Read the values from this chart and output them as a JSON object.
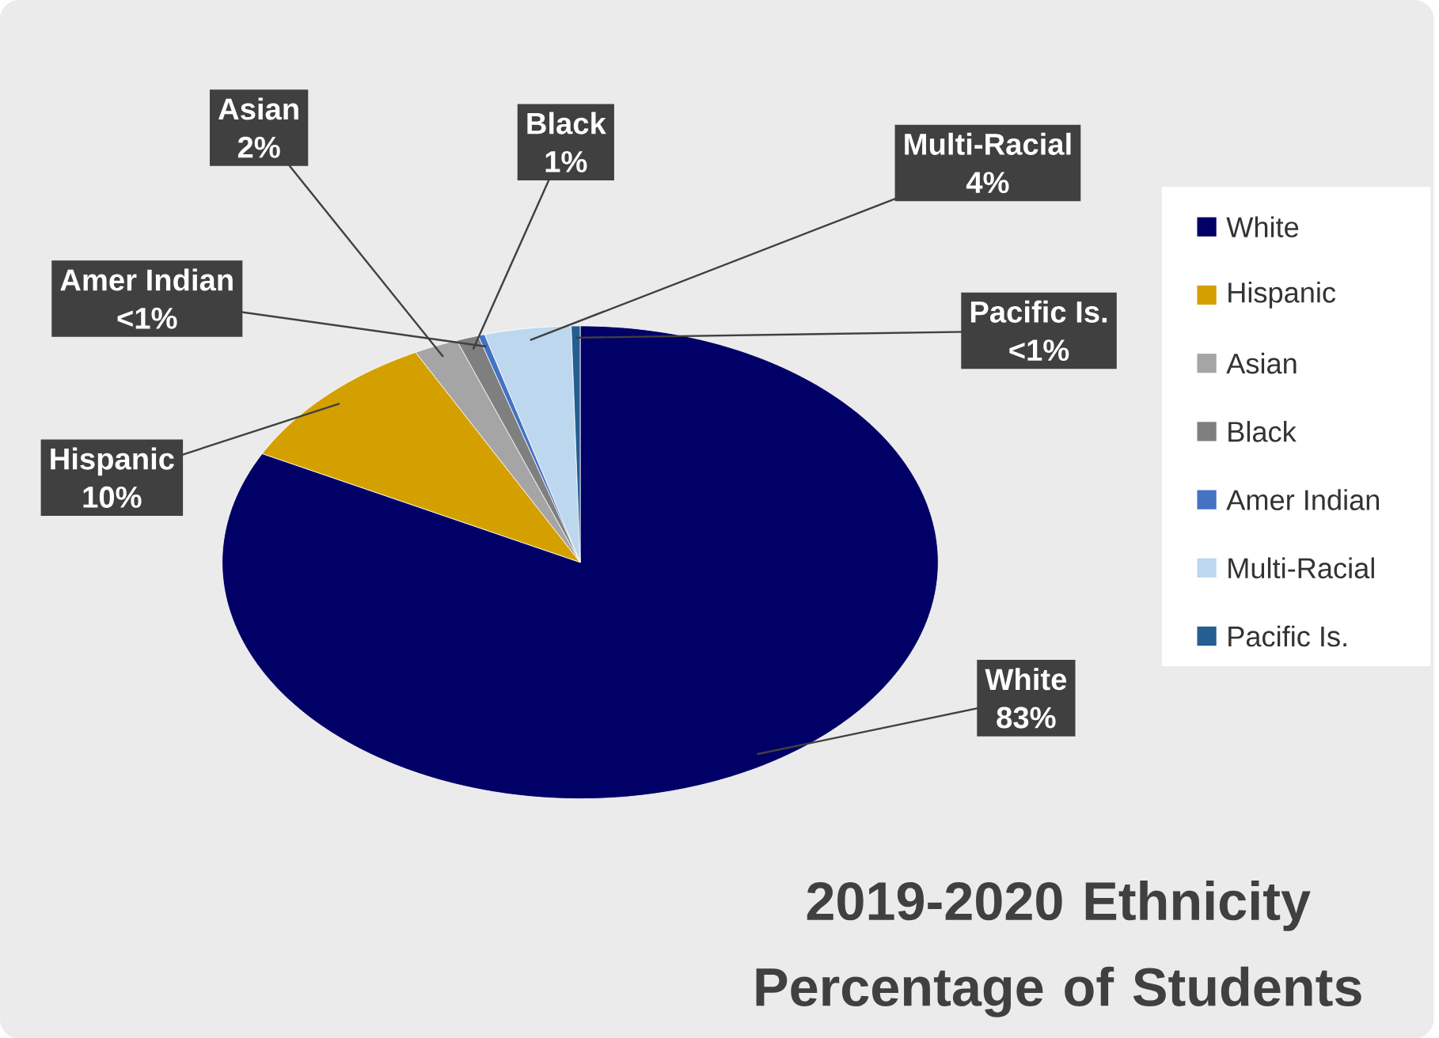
{
  "chart_data": {
    "type": "pie",
    "title": "2019-2020 Ethnicity Percentage of Students",
    "categories": [
      "White",
      "Hispanic",
      "Asian",
      "Black",
      "Amer Indian",
      "Multi-Racial",
      "Pacific Is."
    ],
    "values": [
      82.6,
      9.8,
      2,
      1,
      0.3,
      3.9,
      0.4
    ],
    "value_labels": [
      "83%",
      "10%",
      "2%",
      "1%",
      "<1%",
      "4%",
      "<1%"
    ],
    "colors": [
      "#000066",
      "#d4a000",
      "#a5a5a5",
      "#7f7f7f",
      "#4472c4",
      "#bdd7ee",
      "#255e91"
    ],
    "legend": "right"
  }
}
